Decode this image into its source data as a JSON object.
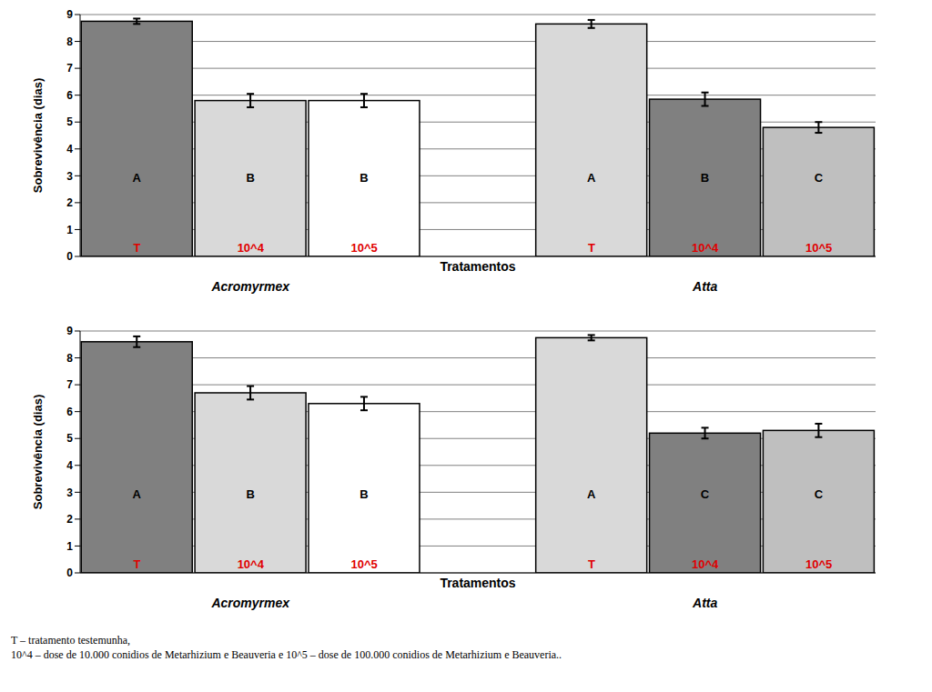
{
  "chart_data": [
    {
      "type": "bar",
      "ylabel": "Sobrevivência (dias)",
      "xlabel": "Tratamentos",
      "categories": [
        "T",
        "10^4",
        "10^5",
        null,
        "T",
        "10^4",
        "10^5"
      ],
      "groups": [
        "Acromyrmex",
        "Atta"
      ],
      "values": [
        8.75,
        5.8,
        5.8,
        null,
        8.65,
        5.85,
        4.8
      ],
      "errors": [
        0.1,
        0.25,
        0.25,
        null,
        0.15,
        0.25,
        0.2
      ],
      "letters": [
        "A",
        "B",
        "B",
        null,
        "A",
        "B",
        "C"
      ],
      "colors": [
        "#808080",
        "#d9d9d9",
        "#ffffff",
        null,
        "#d9d9d9",
        "#808080",
        "#bfbfbf"
      ],
      "ylim": [
        0,
        9
      ],
      "yticks": [
        0,
        1,
        2,
        3,
        4,
        5,
        6,
        7,
        8,
        9
      ],
      "grid": true
    },
    {
      "type": "bar",
      "ylabel": "Sobrevivência (dias)",
      "xlabel": "Tratamentos",
      "categories": [
        "T",
        "10^4",
        "10^5",
        null,
        "T",
        "10^4",
        "10^5"
      ],
      "groups": [
        "Acromyrmex",
        "Atta"
      ],
      "values": [
        8.6,
        6.7,
        6.3,
        null,
        8.75,
        5.2,
        5.3
      ],
      "errors": [
        0.2,
        0.25,
        0.25,
        null,
        0.1,
        0.2,
        0.25
      ],
      "letters": [
        "A",
        "B",
        "B",
        null,
        "A",
        "C",
        "C"
      ],
      "colors": [
        "#808080",
        "#d9d9d9",
        "#ffffff",
        null,
        "#d9d9d9",
        "#808080",
        "#bfbfbf"
      ],
      "ylim": [
        0,
        9
      ],
      "yticks": [
        0,
        1,
        2,
        3,
        4,
        5,
        6,
        7,
        8,
        9
      ],
      "grid": true
    }
  ],
  "footnote": [
    "T – tratamento testemunha,",
    "10^4 – dose de 10.000 conidios de Metarhizium e Beauveria e 10^5 – dose de 100.000 conidios de Metarhizium e Beauveria.."
  ]
}
